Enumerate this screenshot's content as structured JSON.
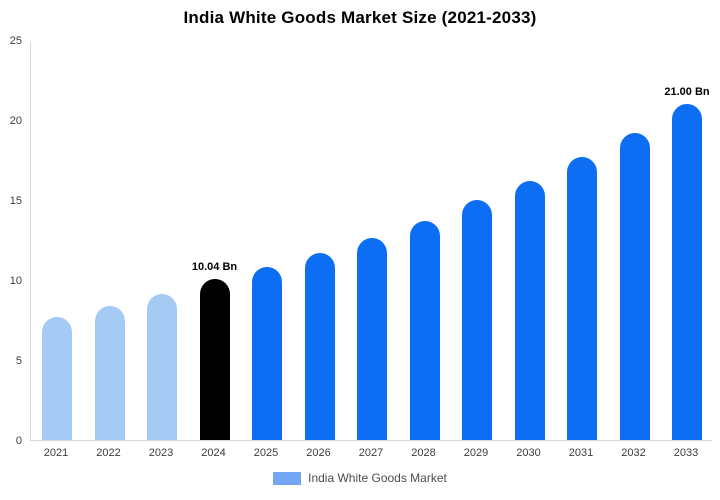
{
  "chart_data": {
    "type": "bar",
    "title": "India White Goods Market Size (2021-2033)",
    "categories": [
      "2021",
      "2022",
      "2023",
      "2024",
      "2025",
      "2026",
      "2027",
      "2028",
      "2029",
      "2030",
      "2031",
      "2032",
      "2033"
    ],
    "values": [
      7.7,
      8.4,
      9.1,
      10.04,
      10.8,
      11.7,
      12.6,
      13.7,
      15.0,
      16.2,
      17.7,
      19.2,
      21.0
    ],
    "unit": "Bn",
    "xlabel": "",
    "ylabel": "",
    "ylim": [
      0,
      25
    ],
    "yticks": [
      0,
      5,
      10,
      15,
      20,
      25
    ],
    "grid": false,
    "bar_colors": [
      "#a5cbf5",
      "#a5cbf5",
      "#a5cbf5",
      "#000000",
      "#0d6ef4",
      "#0d6ef4",
      "#0d6ef4",
      "#0d6ef4",
      "#0d6ef4",
      "#0d6ef4",
      "#0d6ef4",
      "#0d6ef4",
      "#0d6ef4"
    ],
    "annotations": [
      {
        "category": "2024",
        "text": "10.04 Bn"
      },
      {
        "category": "2033",
        "text": "21.00 Bn"
      }
    ],
    "legend": {
      "label": "India White Goods Market",
      "position": "bottom",
      "swatch_color": "#74a7f3"
    },
    "colors": {
      "historical_bar": "#a5cbf5",
      "highlight_bar": "#000000",
      "forecast_bar": "#0d6ef4",
      "axis_line": "#d8d8d8",
      "axis_text": "#3d3d3d"
    }
  }
}
